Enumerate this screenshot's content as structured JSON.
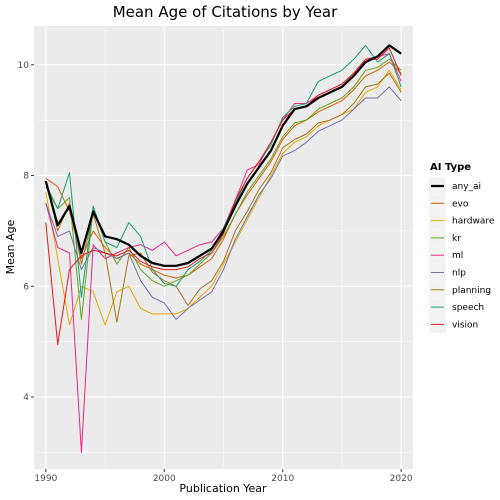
{
  "chart_data": {
    "type": "line",
    "title": "Mean Age of Citations by Year",
    "xlabel": "Publication Year",
    "ylabel": "Mean Age",
    "xlim": [
      1989,
      2021
    ],
    "ylim": [
      2.7,
      10.7
    ],
    "xticks": [
      1990,
      2000,
      2010,
      2020
    ],
    "yticks": [
      4,
      6,
      8,
      10
    ],
    "grid": true,
    "legend_title": "AI Type",
    "legend_position": "right",
    "x": [
      1990,
      1991,
      1992,
      1993,
      1994,
      1995,
      1996,
      1997,
      1998,
      1999,
      2000,
      2001,
      2002,
      2003,
      2004,
      2005,
      2006,
      2007,
      2008,
      2009,
      2010,
      2011,
      2012,
      2013,
      2014,
      2015,
      2016,
      2017,
      2018,
      2019,
      2020
    ],
    "series": [
      {
        "name": "any_ai",
        "color": "#000000",
        "width": 2.2,
        "values": [
          7.9,
          7.1,
          7.45,
          6.6,
          7.35,
          6.9,
          6.85,
          6.75,
          6.55,
          6.42,
          6.37,
          6.37,
          6.42,
          6.55,
          6.68,
          7.0,
          7.45,
          7.85,
          8.15,
          8.45,
          8.9,
          9.2,
          9.25,
          9.4,
          9.5,
          9.6,
          9.8,
          10.05,
          10.15,
          10.35,
          10.2
        ]
      },
      {
        "name": "evo",
        "color": "#D95F02",
        "width": 1,
        "values": [
          7.95,
          7.8,
          7.35,
          6.5,
          7.0,
          6.7,
          6.5,
          6.6,
          6.4,
          6.3,
          6.2,
          6.15,
          6.2,
          6.35,
          6.5,
          6.85,
          7.3,
          7.65,
          7.95,
          8.25,
          8.65,
          8.9,
          9.0,
          9.15,
          9.25,
          9.35,
          9.55,
          9.8,
          9.9,
          10.05,
          9.85
        ]
      },
      {
        "name": "hardware",
        "color": "#E6AB02",
        "width": 1,
        "values": [
          7.7,
          6.5,
          5.3,
          6.0,
          5.9,
          5.3,
          5.9,
          6.0,
          5.6,
          5.5,
          5.5,
          5.5,
          5.6,
          5.8,
          6.0,
          6.4,
          6.8,
          7.2,
          7.6,
          8.0,
          8.4,
          8.6,
          8.7,
          8.9,
          9.0,
          9.1,
          9.2,
          9.5,
          9.6,
          9.9,
          9.55
        ]
      },
      {
        "name": "kr",
        "color": "#66A61E",
        "width": 1,
        "values": [
          7.85,
          7.4,
          7.6,
          5.4,
          7.4,
          6.8,
          6.4,
          6.7,
          6.3,
          6.1,
          6.0,
          6.1,
          6.2,
          6.4,
          6.6,
          6.9,
          7.3,
          7.7,
          8.0,
          8.3,
          8.7,
          8.95,
          9.0,
          9.2,
          9.3,
          9.4,
          9.6,
          9.9,
          9.95,
          10.1,
          9.9
        ]
      },
      {
        "name": "ml",
        "color": "#E7298A",
        "width": 1,
        "values": [
          7.5,
          6.7,
          6.6,
          3.0,
          6.75,
          6.5,
          6.6,
          6.7,
          6.75,
          6.65,
          6.8,
          6.55,
          6.65,
          6.75,
          6.8,
          7.05,
          7.55,
          8.1,
          8.2,
          8.6,
          9.0,
          9.3,
          9.3,
          9.45,
          9.55,
          9.65,
          9.85,
          10.1,
          10.15,
          10.2,
          9.7
        ]
      },
      {
        "name": "nlp",
        "color": "#7570B3",
        "width": 1,
        "values": [
          7.5,
          6.9,
          7.0,
          6.3,
          6.7,
          6.6,
          6.5,
          6.6,
          6.1,
          5.8,
          5.7,
          5.4,
          5.6,
          5.75,
          5.9,
          6.3,
          6.85,
          7.25,
          7.65,
          7.95,
          8.35,
          8.45,
          8.6,
          8.8,
          8.9,
          9.0,
          9.2,
          9.4,
          9.4,
          9.6,
          9.35
        ]
      },
      {
        "name": "planning",
        "color": "#A6761D",
        "width": 1,
        "values": [
          7.9,
          7.0,
          7.5,
          6.4,
          7.3,
          6.6,
          5.35,
          6.55,
          6.6,
          6.25,
          6.1,
          6.0,
          5.65,
          5.95,
          6.1,
          6.45,
          7.0,
          7.35,
          7.75,
          8.05,
          8.5,
          8.65,
          8.75,
          8.95,
          9.0,
          9.1,
          9.3,
          9.6,
          9.65,
          9.85,
          9.5
        ]
      },
      {
        "name": "speech",
        "color": "#1B9E77",
        "width": 1,
        "values": [
          7.8,
          7.4,
          8.05,
          5.8,
          7.45,
          6.8,
          6.7,
          7.15,
          6.9,
          6.3,
          6.05,
          6.0,
          6.3,
          6.45,
          6.65,
          7.05,
          7.5,
          7.95,
          8.25,
          8.55,
          9.05,
          9.25,
          9.3,
          9.7,
          9.8,
          9.9,
          10.1,
          10.35,
          10.05,
          10.2,
          9.6
        ]
      },
      {
        "name": "vision",
        "color": "#E41A1C",
        "width": 1,
        "values": [
          7.15,
          4.95,
          6.3,
          6.55,
          6.65,
          6.6,
          6.55,
          6.65,
          6.45,
          6.35,
          6.3,
          6.3,
          6.35,
          6.5,
          6.6,
          6.95,
          7.55,
          7.95,
          8.25,
          8.6,
          9.0,
          9.2,
          9.25,
          9.45,
          9.55,
          9.65,
          9.85,
          10.1,
          10.1,
          10.3,
          9.8
        ]
      }
    ]
  }
}
